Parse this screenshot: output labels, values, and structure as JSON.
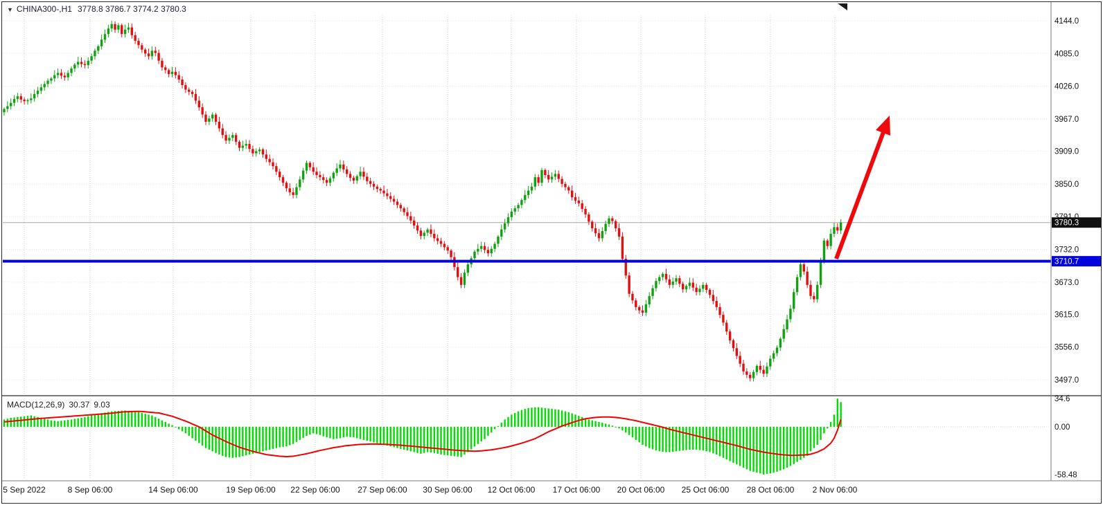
{
  "window": {
    "symbol": "CHINA300-,H1",
    "ohlc_text": "3778.8 3786.7 3774.2 3780.3"
  },
  "price_axis": {
    "current_price_tag": "3780.3",
    "level_price_tag": "3710.7"
  },
  "macd_panel": {
    "label": "MACD(12,26,9)",
    "macd_value": "30.37",
    "signal_value": "9.03"
  },
  "colors": {
    "bull": "#11a211",
    "bear": "#e01010",
    "macd_bar": "#00dc00",
    "macd_signal": "#f20000",
    "support_line": "#0202dd",
    "arrow": "#ee0a0a",
    "tag_current_bg": "#101010",
    "grid": "#cfcfcf"
  },
  "chart_data": [
    {
      "type": "candlestick",
      "symbol": "CHINA300-",
      "timeframe": "H1",
      "last_bar_ohlc": {
        "open": 3778.8,
        "high": 3786.7,
        "low": 3774.2,
        "close": 3780.3
      },
      "ylim": [
        3497.0,
        4144.0
      ],
      "y_ticks": [
        4144.0,
        4085.0,
        4026.0,
        3967.0,
        3909.0,
        3850.0,
        3791.0,
        3732.0,
        3673.0,
        3615.0,
        3556.0,
        3497.0
      ],
      "x_tick_labels": [
        "5 Sep 2022",
        "8 Sep 06:00",
        "14 Sep 06:00",
        "19 Sep 06:00",
        "22 Sep 06:00",
        "27 Sep 06:00",
        "30 Sep 06:00",
        "12 Oct 06:00",
        "17 Oct 06:00",
        "20 Oct 06:00",
        "25 Oct 06:00",
        "28 Oct 06:00",
        "2 Nov 06:00"
      ],
      "current_price": 3780.3,
      "support_level": 3710.7,
      "annotation": "thick red arrow pointing up-right from the blue support line toward 3967 area",
      "closes": [
        3985,
        3990,
        3996,
        4003,
        4008,
        4002,
        3999,
        4001,
        4004,
        4012,
        4018,
        4024,
        4030,
        4036,
        4040,
        4046,
        4050,
        4045,
        4042,
        4050,
        4058,
        4065,
        4070,
        4066,
        4064,
        4072,
        4080,
        4090,
        4098,
        4110,
        4120,
        4130,
        4138,
        4128,
        4136,
        4120,
        4128,
        4132,
        4118,
        4108,
        4100,
        4092,
        4085,
        4080,
        4090,
        4086,
        4072,
        4060,
        4055,
        4048,
        4052,
        4046,
        4038,
        4028,
        4020,
        4016,
        4012,
        4000,
        3988,
        3975,
        3962,
        3968,
        3975,
        3962,
        3950,
        3938,
        3928,
        3933,
        3938,
        3926,
        3915,
        3919,
        3922,
        3913,
        3905,
        3909,
        3912,
        3903,
        3895,
        3889,
        3882,
        3872,
        3862,
        3852,
        3842,
        3835,
        3830,
        3844,
        3858,
        3874,
        3888,
        3880,
        3872,
        3866,
        3862,
        3857,
        3852,
        3860,
        3870,
        3878,
        3885,
        3876,
        3868,
        3861,
        3856,
        3864,
        3872,
        3863,
        3855,
        3850,
        3845,
        3841,
        3838,
        3833,
        3828,
        3823,
        3818,
        3812,
        3806,
        3799,
        3792,
        3784,
        3775,
        3766,
        3756,
        3762,
        3768,
        3760,
        3752,
        3747,
        3742,
        3736,
        3730,
        3718,
        3700,
        3682,
        3668,
        3690,
        3705,
        3716,
        3728,
        3733,
        3738,
        3731,
        3725,
        3733,
        3742,
        3755,
        3768,
        3779,
        3790,
        3800,
        3806,
        3812,
        3821,
        3830,
        3838,
        3845,
        3862,
        3852,
        3875,
        3866,
        3858,
        3863,
        3868,
        3859,
        3850,
        3844,
        3838,
        3826,
        3820,
        3815,
        3805,
        3795,
        3782,
        3770,
        3761,
        3752,
        3765,
        3778,
        3788,
        3783,
        3770,
        3755,
        3715,
        3685,
        3652,
        3640,
        3628,
        3622,
        3618,
        3633,
        3648,
        3662,
        3675,
        3682,
        3688,
        3678,
        3668,
        3674,
        3680,
        3670,
        3660,
        3666,
        3672,
        3663,
        3655,
        3661,
        3668,
        3659,
        3650,
        3639,
        3628,
        3614,
        3600,
        3584,
        3568,
        3554,
        3540,
        3526,
        3512,
        3506,
        3500,
        3511,
        3522,
        3515,
        3508,
        3521,
        3535,
        3545,
        3555,
        3571,
        3588,
        3606,
        3625,
        3655,
        3682,
        3705,
        3692,
        3668,
        3648,
        3642,
        3668,
        3712,
        3748,
        3738,
        3760,
        3772,
        3766,
        3780.3
      ]
    },
    {
      "type": "bar",
      "title": "MACD(12,26,9)",
      "macd_value": 30.37,
      "signal_value": 9.03,
      "ylim": [
        -58.48,
        34.6
      ],
      "y_ticks": [
        34.6,
        0.0,
        -58.48
      ],
      "y_tick_labels": [
        "34.6",
        "0.00",
        "-58.48"
      ],
      "histogram": [
        9,
        10,
        11,
        11.5,
        12,
        12.5,
        13,
        13.5,
        14,
        13,
        12,
        11,
        10,
        9,
        8,
        7.5,
        7,
        7.5,
        8,
        8.5,
        9,
        9.8,
        10.5,
        11.2,
        12,
        13,
        14,
        15,
        16,
        16.8,
        17.5,
        18.2,
        19,
        19.3,
        19.5,
        19.8,
        20,
        19.5,
        19,
        18.5,
        18,
        17,
        16,
        15,
        14,
        12,
        10,
        8,
        6,
        4,
        2,
        -0.5,
        -3,
        -5.5,
        -8,
        -11,
        -14,
        -17,
        -20,
        -23,
        -26,
        -28,
        -30,
        -32,
        -34,
        -35.5,
        -37,
        -37.5,
        -38,
        -37.5,
        -37,
        -36,
        -35,
        -34,
        -33,
        -32,
        -31,
        -30,
        -29,
        -28,
        -27,
        -26,
        -25,
        -24.5,
        -24,
        -22.5,
        -21,
        -18.5,
        -16,
        -13.5,
        -11,
        -9.5,
        -8,
        -9,
        -10,
        -11.5,
        -13,
        -14,
        -15,
        -14.5,
        -14,
        -13,
        -12,
        -12.5,
        -13,
        -14,
        -15,
        -16,
        -17,
        -18,
        -19,
        -20,
        -21,
        -22,
        -23,
        -24,
        -25,
        -26,
        -27,
        -28,
        -29,
        -30,
        -31,
        -32,
        -33,
        -32,
        -31,
        -31.5,
        -32,
        -33,
        -34,
        -34.5,
        -35,
        -35.5,
        -36,
        -36.5,
        -37,
        -34,
        -31,
        -27.5,
        -24,
        -21,
        -18,
        -15,
        -11,
        -7,
        -3,
        1,
        5,
        9,
        12,
        15,
        17,
        19,
        20.5,
        22,
        23,
        23.5,
        24,
        24,
        23.5,
        23,
        22.5,
        22,
        21.5,
        21,
        20,
        19,
        18,
        16.5,
        15,
        13.5,
        12,
        10.5,
        9,
        8,
        7,
        6,
        5,
        4,
        3,
        1.5,
        0,
        -2,
        -4.5,
        -7,
        -10,
        -13,
        -16,
        -19,
        -22,
        -24,
        -26,
        -27.5,
        -29,
        -30,
        -30.5,
        -31,
        -31,
        -30.5,
        -30,
        -29.5,
        -29,
        -28.5,
        -28,
        -28,
        -28,
        -28.5,
        -29,
        -30,
        -31,
        -32.5,
        -34,
        -36,
        -38,
        -40,
        -42,
        -44,
        -46,
        -48,
        -50,
        -52,
        -54,
        -55,
        -56,
        -57,
        -58.48,
        -57.5,
        -57,
        -56,
        -55,
        -53.5,
        -52,
        -50,
        -48,
        -45.5,
        -43,
        -40.5,
        -38,
        -35.5,
        -30,
        -26,
        -22,
        -16,
        -8,
        -2,
        6,
        15,
        34.6,
        30.37
      ],
      "signal": [
        6,
        6.4,
        6.8,
        7.2,
        7.6,
        8,
        8.4,
        8.8,
        9.2,
        9.6,
        10,
        10.3,
        10.6,
        10.9,
        11.2,
        11.5,
        11.8,
        12.1,
        12.4,
        12.7,
        13,
        13.3,
        13.6,
        13.9,
        14.2,
        14.5,
        14.8,
        15.1,
        15.4,
        15.7,
        16,
        16.4,
        16.8,
        17.2,
        17.7,
        18.1,
        18.5,
        18.6,
        18.7,
        18.9,
        19,
        18.7,
        18.4,
        18,
        17.7,
        17.3,
        17,
        16,
        15,
        14,
        13,
        11.5,
        10,
        8.5,
        7,
        5.3,
        3.5,
        1.8,
        0,
        -2.5,
        -5,
        -7.5,
        -10,
        -12,
        -14,
        -16,
        -18,
        -19.8,
        -21.5,
        -23.3,
        -25,
        -26.3,
        -27.5,
        -28.8,
        -30,
        -31,
        -32,
        -33,
        -34,
        -34.5,
        -35,
        -35.5,
        -36,
        -36.3,
        -36.5,
        -36.3,
        -36,
        -35.3,
        -34.5,
        -33.8,
        -33,
        -32,
        -31,
        -30,
        -29,
        -28.1,
        -27.3,
        -26.4,
        -25.5,
        -24.9,
        -24.3,
        -23.6,
        -23,
        -22.6,
        -22.3,
        -21.9,
        -21.5,
        -21.4,
        -21.3,
        -21.1,
        -21,
        -21.1,
        -21.3,
        -21.4,
        -21.5,
        -21.8,
        -22,
        -22.3,
        -22.5,
        -22.9,
        -23.3,
        -23.6,
        -24,
        -24.4,
        -24.8,
        -25.1,
        -25.5,
        -25.9,
        -26.3,
        -26.6,
        -27,
        -27.4,
        -27.8,
        -28.1,
        -28.5,
        -28.8,
        -29,
        -29.3,
        -29.5,
        -29.7,
        -29.8,
        -29.7,
        -29.5,
        -29.1,
        -28.6,
        -28.1,
        -27.5,
        -26.8,
        -26.1,
        -25.3,
        -24.5,
        -23.4,
        -22.3,
        -21.2,
        -20,
        -18.7,
        -17.3,
        -15.9,
        -14.5,
        -12.4,
        -10.3,
        -8.1,
        -6,
        -4.3,
        -2.5,
        -0.8,
        1,
        2.4,
        3.8,
        5.2,
        6.5,
        7.8,
        9,
        9.8,
        10.5,
        11,
        11.5,
        11.8,
        12,
        12,
        12,
        11.8,
        11.5,
        11,
        10.5,
        9.8,
        9,
        8.3,
        7.5,
        6.5,
        5.5,
        4.5,
        3.5,
        2.5,
        1.5,
        0.5,
        -0.5,
        -1.8,
        -3,
        -4,
        -5,
        -6,
        -7,
        -8,
        -9,
        -10,
        -11,
        -12,
        -13,
        -14,
        -15,
        -16,
        -17,
        -18,
        -19,
        -20,
        -21,
        -22,
        -23,
        -24.1,
        -25.3,
        -26.4,
        -27.5,
        -28.4,
        -29.3,
        -30.1,
        -31,
        -31.6,
        -32.3,
        -32.9,
        -33.5,
        -33.9,
        -34.3,
        -34.6,
        -35,
        -34.9,
        -34.8,
        -34.6,
        -34.5,
        -34,
        -33.5,
        -32.3,
        -31,
        -29,
        -27,
        -23.5,
        -20,
        -14,
        -4,
        9.03
      ]
    }
  ]
}
